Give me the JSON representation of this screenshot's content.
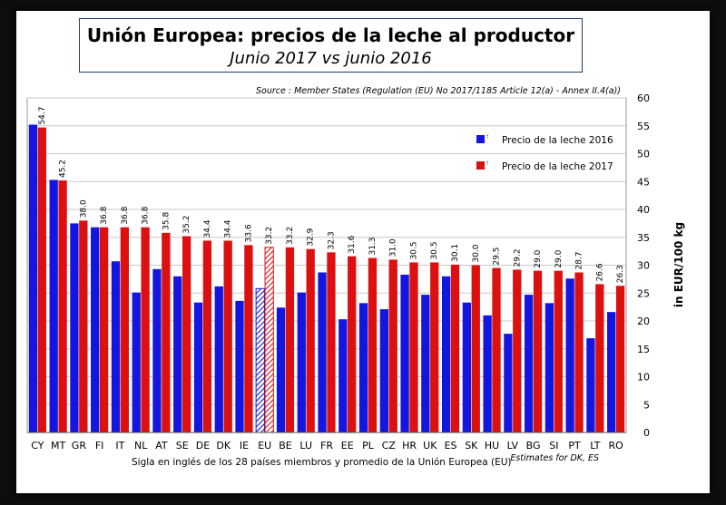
{
  "header": {
    "title": "Unión Europea: precios de la leche al productor",
    "subtitle": "Junio 2017 vs junio 2016"
  },
  "source_text": "Source : Member States (Regulation (EU) No 2017/1185 Article 12(a) - Annex II.4(a))",
  "footnote": "Sigla en inglés de los 28 países miembros y promedio de la Unión Europea (EU)",
  "estimates_note": "Estimates for DK, ES",
  "colors": {
    "series_2016": "#1515e0",
    "series_2017": "#dd1010",
    "grid": "#c8c8c8",
    "plot_bg": "#ffffff"
  },
  "chart_data": {
    "type": "bar",
    "title": "Unión Europea: precios de la leche al productor",
    "ylabel": "in EUR/100 kg",
    "xlabel": "",
    "ylim": [
      0,
      60
    ],
    "yticks": [
      0,
      5,
      10,
      15,
      20,
      25,
      30,
      35,
      40,
      45,
      50,
      55,
      60
    ],
    "grid": true,
    "legend_position": "top-right",
    "categories": [
      "CY",
      "MT",
      "GR",
      "FI",
      "IT",
      "NL",
      "AT",
      "SE",
      "DE",
      "DK",
      "IE",
      "EU",
      "BE",
      "LU",
      "FR",
      "EE",
      "PL",
      "CZ",
      "HR",
      "UK",
      "ES",
      "SK",
      "HU",
      "LV",
      "BG",
      "SI",
      "PT",
      "LT",
      "RO"
    ],
    "highlight_category": "EU",
    "series": [
      {
        "name": "Precio de la leche 2016",
        "values": [
          55.2,
          45.3,
          37.5,
          36.8,
          30.7,
          25.1,
          29.3,
          28.0,
          23.3,
          26.2,
          23.6,
          25.8,
          22.4,
          25.1,
          28.7,
          20.3,
          23.2,
          22.1,
          28.3,
          24.7,
          28.0,
          23.3,
          21.0,
          17.7,
          24.7,
          23.2,
          27.6,
          16.9,
          21.6
        ]
      },
      {
        "name": "Precio de la leche 2017",
        "values": [
          54.7,
          45.2,
          38.0,
          36.8,
          36.8,
          36.8,
          35.8,
          35.2,
          34.4,
          34.4,
          33.6,
          33.2,
          33.2,
          32.9,
          32.3,
          31.6,
          31.3,
          31.0,
          30.5,
          30.5,
          30.1,
          30.0,
          29.5,
          29.2,
          29.0,
          29.0,
          28.7,
          26.6,
          26.3
        ],
        "labels": [
          "54.7",
          "45.2",
          "38.0",
          "36.8",
          "36.8",
          "36.8",
          "35.8",
          "35.2",
          "34.4",
          "34.4",
          "33.6",
          "33.2",
          "33.2",
          "32.9",
          "32.3",
          "31.6",
          "31.3",
          "31.0",
          "30.5",
          "30.5",
          "30.1",
          "30.0",
          "29.5",
          "29.2",
          "29.0",
          "29.0",
          "28.7",
          "26.6",
          "26.3"
        ]
      }
    ]
  }
}
